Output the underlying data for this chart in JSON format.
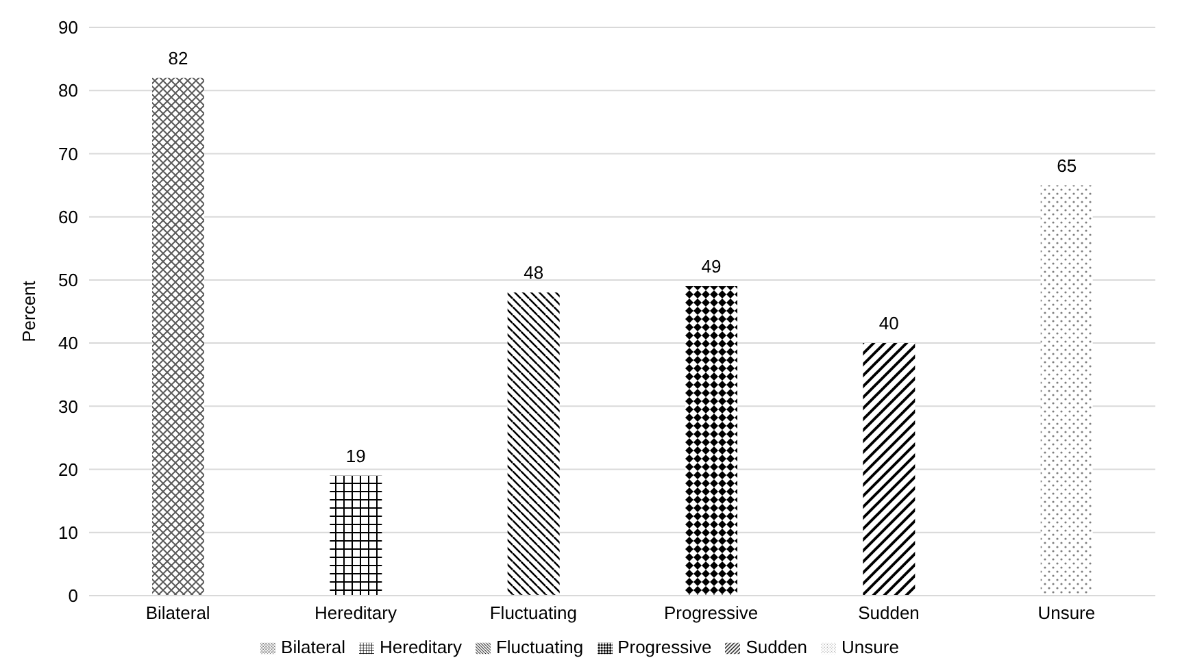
{
  "chart_data": {
    "type": "bar",
    "ylabel": "Percent",
    "categories": [
      "Bilateral",
      "Hereditary",
      "Fluctuating",
      "Progressive",
      "Sudden",
      "Unsure"
    ],
    "series": [
      {
        "name": "Bilateral",
        "color": "#595959",
        "values": [
          82,
          null,
          null,
          null,
          null,
          null
        ]
      },
      {
        "name": "Hereditary",
        "color": "#000000",
        "values": [
          null,
          19,
          null,
          null,
          null,
          null
        ]
      },
      {
        "name": "Fluctuating",
        "color": "#000000",
        "values": [
          null,
          null,
          48,
          null,
          null,
          null
        ]
      },
      {
        "name": "Progressive",
        "color": "#000000",
        "values": [
          null,
          null,
          null,
          49,
          null,
          null
        ]
      },
      {
        "name": "Sudden",
        "color": "#000000",
        "values": [
          null,
          null,
          null,
          null,
          40,
          null
        ]
      },
      {
        "name": "Unsure",
        "color": "#7f7f7f",
        "values": [
          null,
          null,
          null,
          null,
          null,
          65
        ]
      }
    ],
    "ylim": [
      0,
      90
    ],
    "yticks": [
      0,
      10,
      20,
      30,
      40,
      50,
      60,
      70,
      80,
      90
    ],
    "grid": "y",
    "legend": "bottom",
    "data_labels": true
  }
}
